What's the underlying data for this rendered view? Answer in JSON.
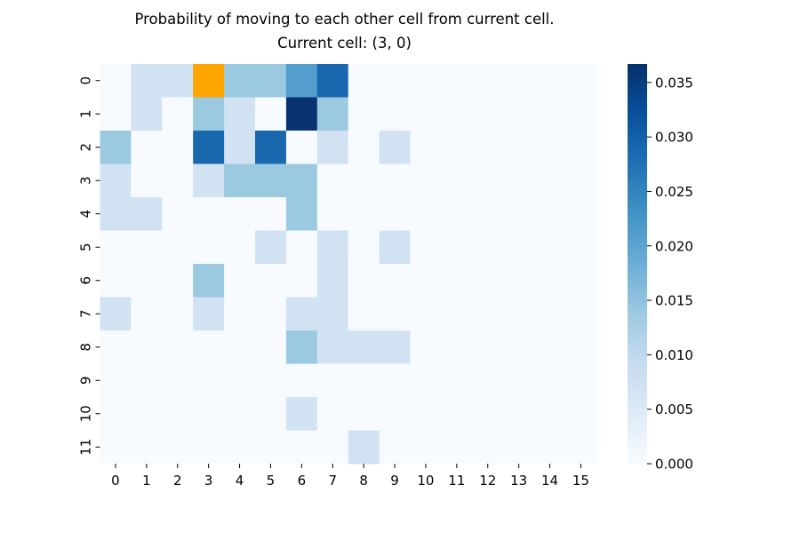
{
  "chart_data": {
    "type": "heatmap",
    "title": "Probability of moving to each other cell from current cell.",
    "subtitle": "Current cell: (3, 0)",
    "x_labels": [
      "0",
      "1",
      "2",
      "3",
      "4",
      "5",
      "6",
      "7",
      "8",
      "9",
      "10",
      "11",
      "12",
      "13",
      "14",
      "15"
    ],
    "y_labels": [
      "0",
      "1",
      "2",
      "3",
      "4",
      "5",
      "6",
      "7",
      "8",
      "9",
      "10",
      "11"
    ],
    "values": [
      [
        0,
        0.007,
        0.007,
        null,
        0.014,
        0.014,
        0.021,
        0.029,
        0,
        0,
        0,
        0,
        0,
        0,
        0,
        0
      ],
      [
        0,
        0.007,
        0,
        0.014,
        0.007,
        0,
        0.036,
        0.014,
        0,
        0,
        0,
        0,
        0,
        0,
        0,
        0
      ],
      [
        0.014,
        0,
        0,
        0.029,
        0.007,
        0.029,
        0,
        0.007,
        0,
        0.007,
        0,
        0,
        0,
        0,
        0,
        0
      ],
      [
        0.007,
        0,
        0,
        0.007,
        0.014,
        0.014,
        0.014,
        0,
        0,
        0,
        0,
        0,
        0,
        0,
        0,
        0
      ],
      [
        0.007,
        0.007,
        0,
        0,
        0,
        0,
        0.014,
        0,
        0,
        0,
        0,
        0,
        0,
        0,
        0,
        0
      ],
      [
        0,
        0,
        0,
        0,
        0,
        0.007,
        0,
        0.007,
        0,
        0.007,
        0,
        0,
        0,
        0,
        0,
        0
      ],
      [
        0,
        0,
        0,
        0.014,
        0,
        0,
        0,
        0.007,
        0,
        0,
        0,
        0,
        0,
        0,
        0,
        0
      ],
      [
        0.007,
        0,
        0,
        0.007,
        0,
        0,
        0.007,
        0.007,
        0,
        0,
        0,
        0,
        0,
        0,
        0,
        0
      ],
      [
        0,
        0,
        0,
        0,
        0,
        0,
        0.014,
        0.007,
        0.007,
        0.007,
        0,
        0,
        0,
        0,
        0,
        0
      ],
      [
        0,
        0,
        0,
        0,
        0,
        0,
        0,
        0,
        0,
        0,
        0,
        0,
        0,
        0,
        0,
        0
      ],
      [
        0,
        0,
        0,
        0,
        0,
        0,
        0.007,
        0,
        0,
        0,
        0,
        0,
        0,
        0,
        0,
        0
      ],
      [
        0,
        0,
        0,
        0,
        0,
        0,
        0,
        0,
        0.007,
        0,
        0,
        0,
        0,
        0,
        0,
        0
      ]
    ],
    "highlight_cell": {
      "row": 0,
      "col": 3,
      "color": "#ffa500"
    },
    "colorbar": {
      "range": [
        0,
        0.0367
      ],
      "ticks": [
        "0.000",
        "0.005",
        "0.010",
        "0.015",
        "0.020",
        "0.025",
        "0.030",
        "0.035"
      ],
      "colormap": "Blues",
      "stops": [
        "#f7fbff",
        "#deebf7",
        "#c6dbef",
        "#9ecae1",
        "#6baed6",
        "#4292c6",
        "#2171b5",
        "#08519c",
        "#08306b"
      ]
    }
  }
}
